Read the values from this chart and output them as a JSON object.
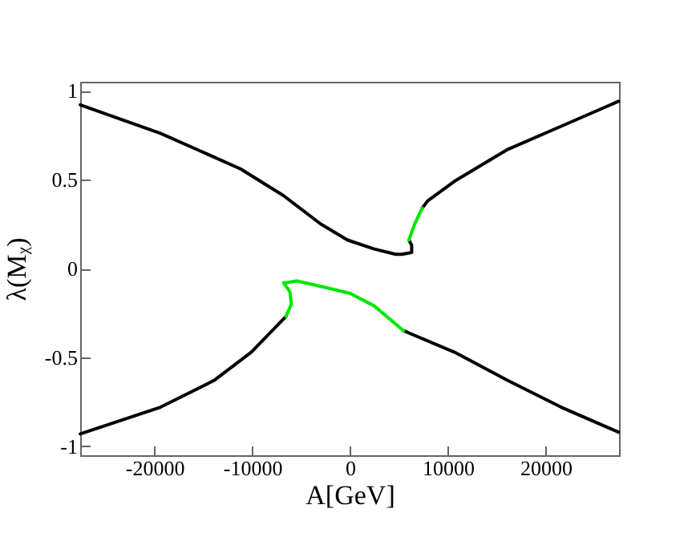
{
  "chart_data": {
    "type": "line",
    "xlabel": "A[GeV]",
    "ylabel": "λ(Mᵪ)",
    "xlim": [
      -27600,
      27500
    ],
    "ylim": [
      -1.05,
      1.05
    ],
    "xticks": [
      -20000,
      -10000,
      0,
      10000,
      20000
    ],
    "yticks": [
      -1,
      -0.5,
      0,
      0.5,
      1
    ],
    "grid": false,
    "legend": false,
    "marker": "none",
    "line_style": "solid",
    "series": [
      {
        "color": "#000000",
        "x": [
          -27590,
          -19390,
          -11200,
          -6820,
          -3000,
          -260,
          2460,
          4650,
          5300,
          6300,
          6300,
          6020,
          null,
          7380,
          7930,
          10660,
          16130,
          21590,
          27440,
          null,
          -27590,
          -19390,
          -13930,
          -10100,
          -6560,
          null,
          5480,
          10660,
          16130,
          21590,
          27440
        ],
        "values": [
          0.92,
          0.76,
          0.56,
          0.41,
          0.25,
          0.16,
          0.11,
          0.08,
          0.08,
          0.09,
          0.13,
          0.16,
          null,
          0.34,
          0.38,
          0.49,
          0.67,
          0.8,
          0.94,
          null,
          -0.93,
          -0.78,
          -0.63,
          -0.47,
          -0.27,
          null,
          -0.35,
          -0.47,
          -0.63,
          -0.78,
          -0.92
        ]
      },
      {
        "color": "#00e600",
        "x": [
          -6560,
          -6000,
          -6160,
          -6820,
          -6500,
          -5460,
          -3000,
          0,
          2460,
          5480
        ],
        "values": [
          -0.27,
          -0.2,
          -0.13,
          -0.08,
          -0.08,
          -0.07,
          -0.1,
          -0.14,
          -0.21,
          -0.35
        ]
      },
      {
        "color": "#00e600",
        "x": [
          6020,
          6600,
          7380
        ],
        "values": [
          0.16,
          0.25,
          0.34
        ]
      }
    ]
  }
}
